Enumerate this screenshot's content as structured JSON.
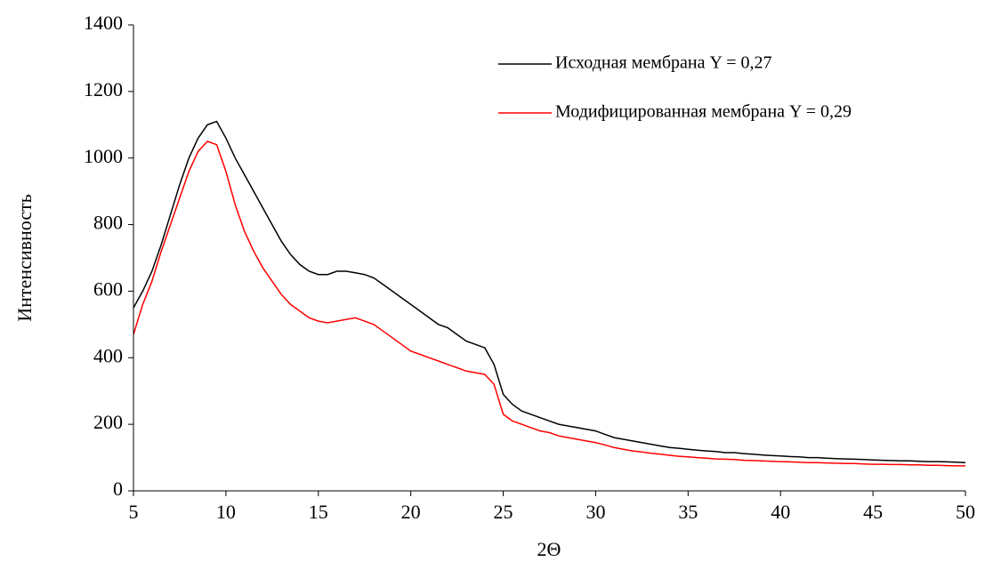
{
  "chart_data": {
    "type": "line",
    "x_label": "2Θ",
    "y_label": "Интенсивность",
    "x": [
      5,
      5.5,
      6,
      6.5,
      7,
      7.5,
      8,
      8.5,
      9,
      9.5,
      10,
      10.5,
      11,
      11.5,
      12,
      12.5,
      13,
      13.5,
      14,
      14.5,
      15,
      15.5,
      16,
      16.5,
      17,
      17.5,
      18,
      18.5,
      19,
      19.5,
      20,
      20.5,
      21,
      21.5,
      22,
      22.5,
      23,
      23.5,
      24,
      24.5,
      25,
      25.5,
      26,
      26.5,
      27,
      27.5,
      28,
      28.5,
      29,
      29.5,
      30,
      30.5,
      31,
      31.5,
      32,
      32.5,
      33,
      33.5,
      34,
      34.5,
      35,
      35.5,
      36,
      36.5,
      37,
      37.5,
      38,
      38.5,
      39,
      39.5,
      40,
      40.5,
      41,
      41.5,
      42,
      42.5,
      43,
      43.5,
      44,
      44.5,
      45,
      45.5,
      46,
      46.5,
      47,
      47.5,
      48,
      48.5,
      49,
      49.5,
      50
    ],
    "series": [
      {
        "name": "Исходная мембрана Y = 0,27",
        "color": "#000000",
        "values": [
          550,
          600,
          660,
          740,
          830,
          920,
          1000,
          1060,
          1100,
          1110,
          1060,
          1000,
          950,
          900,
          850,
          800,
          750,
          710,
          680,
          660,
          650,
          650,
          660,
          660,
          655,
          650,
          640,
          620,
          600,
          580,
          560,
          540,
          520,
          500,
          490,
          470,
          450,
          440,
          430,
          380,
          290,
          260,
          240,
          230,
          220,
          210,
          200,
          195,
          190,
          185,
          180,
          170,
          160,
          155,
          150,
          145,
          140,
          135,
          130,
          128,
          125,
          122,
          120,
          118,
          115,
          115,
          112,
          110,
          108,
          106,
          105,
          103,
          102,
          100,
          100,
          98,
          97,
          96,
          95,
          94,
          93,
          92,
          91,
          90,
          90,
          89,
          88,
          88,
          87,
          86,
          85
        ]
      },
      {
        "name": "Модифицированная мембрана Y = 0,29",
        "color": "#ff0000",
        "values": [
          470,
          560,
          630,
          720,
          800,
          880,
          960,
          1020,
          1050,
          1040,
          960,
          860,
          780,
          720,
          670,
          630,
          590,
          560,
          540,
          520,
          510,
          505,
          510,
          515,
          520,
          510,
          500,
          480,
          460,
          440,
          420,
          410,
          400,
          390,
          380,
          370,
          360,
          355,
          350,
          320,
          230,
          210,
          200,
          190,
          180,
          175,
          165,
          160,
          155,
          150,
          145,
          138,
          130,
          125,
          120,
          117,
          113,
          110,
          107,
          104,
          102,
          100,
          98,
          96,
          95,
          94,
          92,
          91,
          90,
          89,
          88,
          87,
          86,
          85,
          85,
          84,
          83,
          82,
          82,
          81,
          80,
          80,
          79,
          79,
          78,
          78,
          77,
          77,
          76,
          75,
          75
        ]
      }
    ],
    "xlim": [
      5,
      50
    ],
    "xticks": [
      5,
      10,
      15,
      20,
      25,
      30,
      35,
      40,
      45,
      50
    ],
    "ylim": [
      0,
      1400
    ],
    "yticks": [
      0,
      200,
      400,
      600,
      800,
      1000,
      1200,
      1400
    ],
    "grid": false,
    "legend": "top-right"
  }
}
